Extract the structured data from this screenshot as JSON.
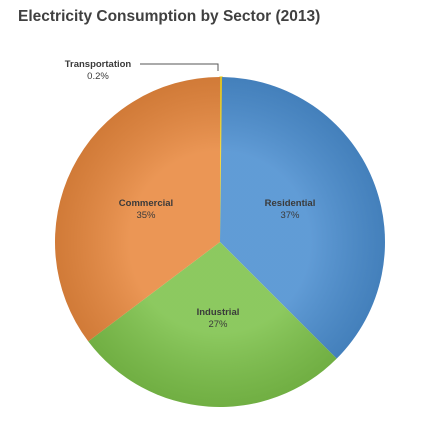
{
  "chart_data": {
    "type": "pie",
    "title": "Electricity Consumption by Sector (2013)",
    "slices": [
      {
        "name": "Transportation",
        "value": 0.2,
        "value_label": "0.2%",
        "color": "#f2d12a"
      },
      {
        "name": "Residential",
        "value": 37,
        "value_label": "37%",
        "color": "#4b8ed0"
      },
      {
        "name": "Industrial",
        "value": 27,
        "value_label": "27%",
        "color": "#7dc24a"
      },
      {
        "name": "Commercial",
        "value": 35,
        "value_label": "35%",
        "color": "#e8883e"
      }
    ],
    "start_angle_deg": 0,
    "direction": "clockwise",
    "legend": "none"
  }
}
